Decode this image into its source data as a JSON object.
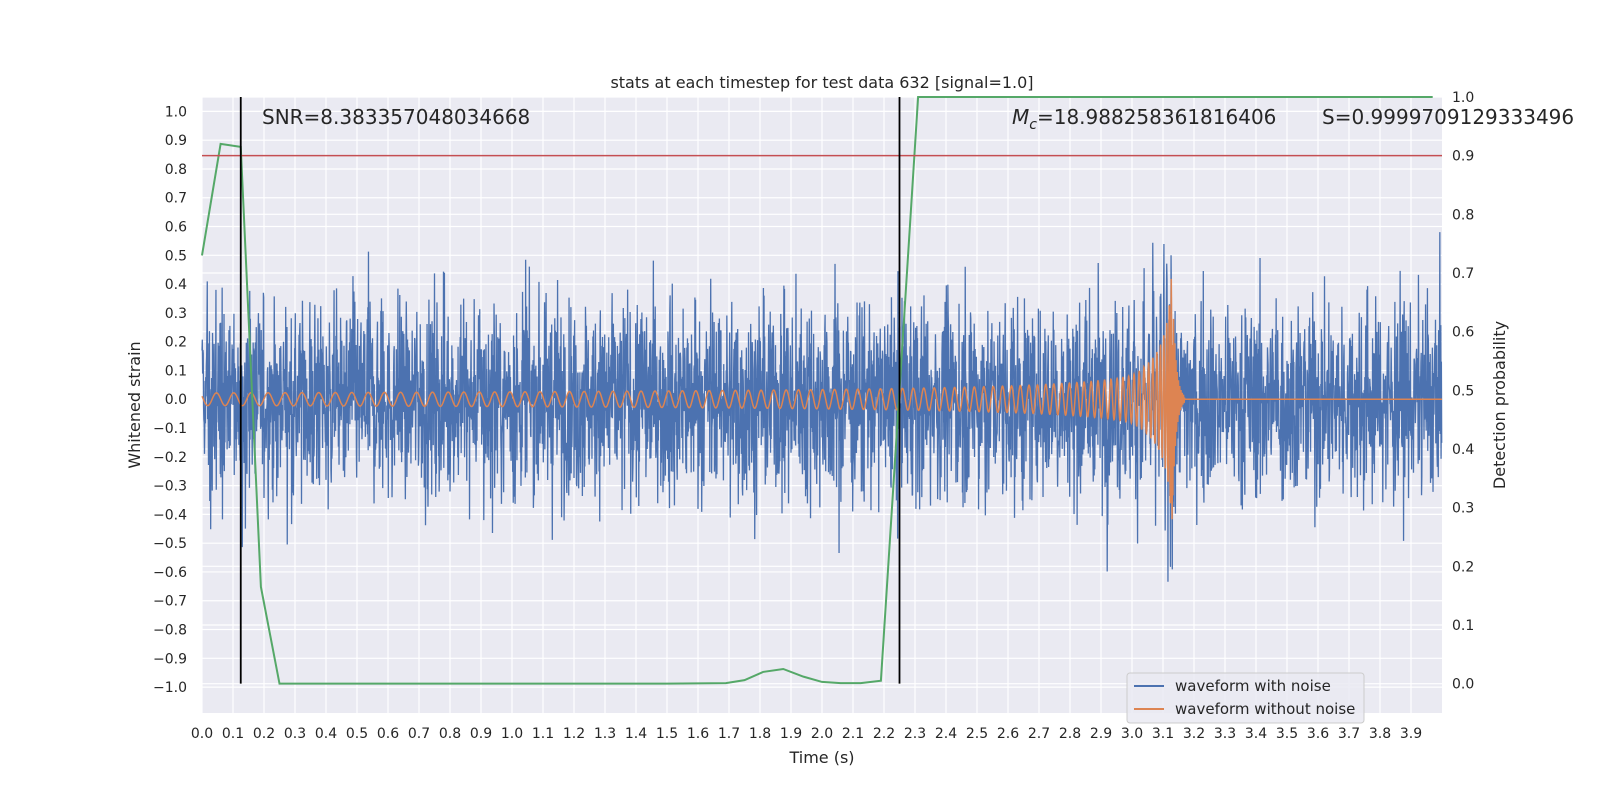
{
  "chart_data": {
    "type": "line",
    "title": "stats at each timestep for test data 632 [signal=1.0]",
    "xlabel": "Time (s)",
    "ylabel": "Whitened strain",
    "y2label": "Detection probability",
    "xlim": [
      0.0,
      4.0
    ],
    "ylim": [
      -1.09,
      1.05
    ],
    "y2lim": [
      -0.05,
      1.0
    ],
    "x_ticks": [
      "0.0",
      "0.1",
      "0.2",
      "0.3",
      "0.4",
      "0.5",
      "0.6",
      "0.7",
      "0.8",
      "0.9",
      "1.0",
      "1.1",
      "1.2",
      "1.3",
      "1.4",
      "1.5",
      "1.6",
      "1.7",
      "1.8",
      "1.9",
      "2.0",
      "2.1",
      "2.2",
      "2.3",
      "2.4",
      "2.5",
      "2.6",
      "2.7",
      "2.8",
      "2.9",
      "3.0",
      "3.1",
      "3.2",
      "3.3",
      "3.4",
      "3.5",
      "3.6",
      "3.7",
      "3.8",
      "3.9"
    ],
    "y_ticks": [
      "1.0",
      "0.9",
      "0.8",
      "0.7",
      "0.6",
      "0.5",
      "0.4",
      "0.3",
      "0.2",
      "0.1",
      "0.0",
      "−0.1",
      "−0.2",
      "−0.3",
      "−0.4",
      "−0.5",
      "−0.6",
      "−0.7",
      "−0.8",
      "−0.9",
      "−1.0"
    ],
    "y2_ticks": [
      "1.0",
      "0.9",
      "0.8",
      "0.7",
      "0.6",
      "0.5",
      "0.4",
      "0.3",
      "0.2",
      "0.1",
      "0.0"
    ],
    "grid": true,
    "legend_position": "bottom-right",
    "annotations": {
      "snr": "SNR=8.383357048034668",
      "mc_symbol": "M",
      "mc_sub": "c",
      "mc_value": "=18.988258361816406",
      "s": "S=0.9999709129333496"
    },
    "series": [
      {
        "name": "waveform with noise",
        "color": "#4c72b0",
        "description": "whitened noisy strain, amplitude mostly within ±0.6"
      },
      {
        "name": "waveform without noise",
        "color": "#dd8452",
        "description": "chirp waveform growing to merger near t=3.13 s, then ringdown to zero"
      }
    ],
    "detection_probability": {
      "color": "#55a868",
      "x": [
        0.0,
        0.06,
        0.125,
        0.19,
        0.25,
        0.5,
        1.0,
        1.5,
        1.69,
        1.75,
        1.81,
        1.875,
        1.94,
        2.0,
        2.06,
        2.125,
        2.19,
        2.25,
        2.31,
        2.5,
        3.0,
        3.5,
        3.97
      ],
      "y": [
        0.73,
        0.92,
        0.915,
        0.165,
        0.0,
        0.0,
        0.0,
        0.0,
        0.001,
        0.006,
        0.02,
        0.025,
        0.012,
        0.003,
        0.001,
        0.001,
        0.005,
        0.5,
        1.0,
        1.0,
        1.0,
        1.0,
        1.0
      ]
    },
    "threshold": {
      "y": 0.9,
      "color": "#c44e52"
    },
    "vlines": {
      "x": [
        0.125,
        2.25
      ],
      "color": "#000000"
    }
  }
}
